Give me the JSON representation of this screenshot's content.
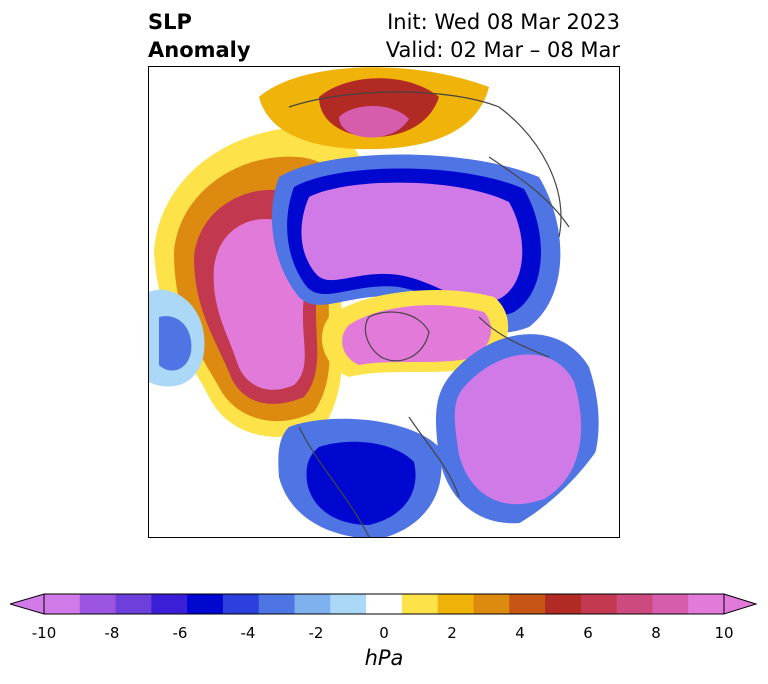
{
  "title": {
    "line1": "SLP",
    "line2": "Anomaly"
  },
  "subtitle": {
    "line1": "Init: Wed 08 Mar 2023",
    "line2": "Valid: 02 Mar – 08 Mar"
  },
  "colorbar": {
    "unit": "hPa",
    "tick_labels": [
      "-10",
      "-8",
      "-6",
      "-4",
      "-2",
      "0",
      "2",
      "4",
      "6",
      "8",
      "10"
    ],
    "colors": [
      "#d07ae8",
      "#9c55e0",
      "#6f3fdc",
      "#3b1fd6",
      "#0008d0",
      "#2d40dd",
      "#4f74e3",
      "#7fb1ee",
      "#aad8f6",
      "#ffffff",
      "#fde24a",
      "#f0b30a",
      "#dd8a10",
      "#c65516",
      "#b12a24",
      "#c2394f",
      "#cc4a7e",
      "#d65cac",
      "#e27ada"
    ],
    "extend": "both"
  },
  "map": {
    "projection": "polar stereographic (Northern Hemisphere)",
    "field": "SLP anomaly",
    "features": [
      "coastlines",
      "country borders",
      "state/province borders"
    ]
  }
}
